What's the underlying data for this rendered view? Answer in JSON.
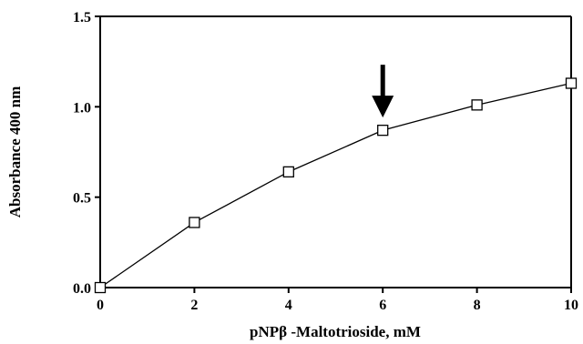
{
  "chart_data": {
    "type": "line",
    "title": "",
    "xlabel": "pNPβ -Maltotrioside, mM",
    "ylabel": "Absorbance 400 nm",
    "xlim": [
      0,
      10
    ],
    "ylim": [
      0,
      1.5
    ],
    "x_ticks": [
      "0",
      "2",
      "4",
      "6",
      "8",
      "10"
    ],
    "y_ticks": [
      "0.0",
      "0.5",
      "1.0",
      "1.5"
    ],
    "grid": false,
    "marker": "open-square",
    "series": [
      {
        "x": [
          0,
          2,
          4,
          6,
          8,
          10
        ],
        "y": [
          0.0,
          0.36,
          0.64,
          0.87,
          1.01,
          1.13
        ]
      }
    ],
    "annotations": [
      {
        "type": "arrow",
        "direction": "down",
        "x": 6,
        "y": 0.87
      }
    ]
  }
}
